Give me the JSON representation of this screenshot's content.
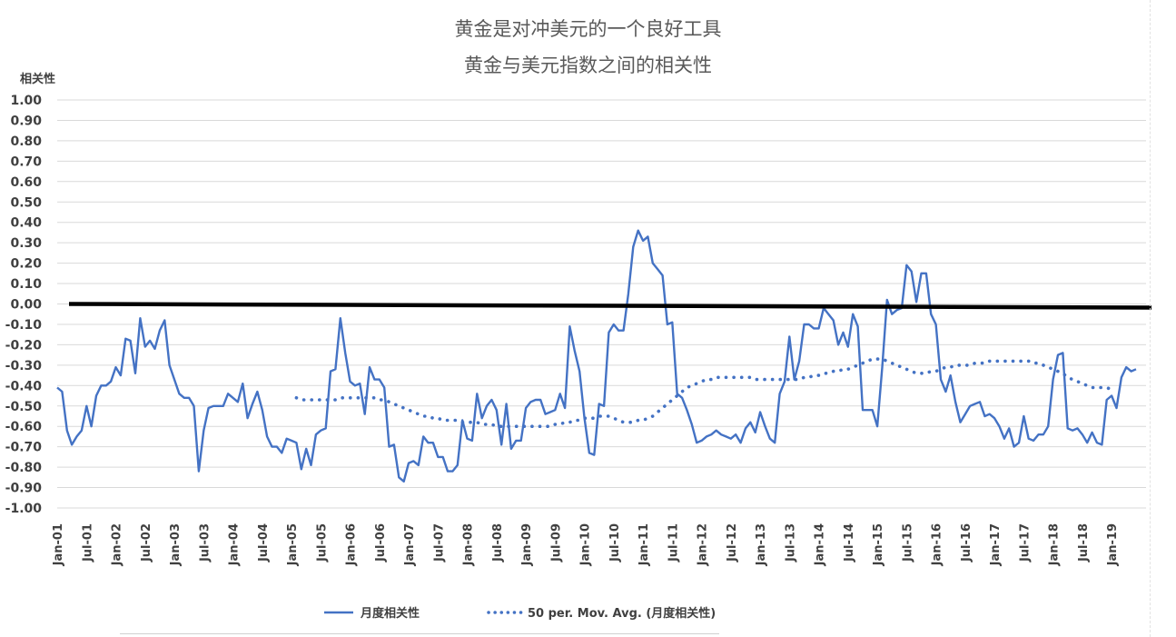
{
  "chart_data": {
    "type": "line",
    "title": "黄金是对冲美元的一个良好工具",
    "subtitle": "黄金与美元指数之间的相关性",
    "ylabel": "相关性",
    "xlabel": "",
    "ylim": [
      -1.0,
      1.0
    ],
    "y_ticks": [
      "1.00",
      "0.90",
      "0.80",
      "0.70",
      "0.60",
      "0.50",
      "0.40",
      "0.30",
      "0.20",
      "0.10",
      "0.00",
      "-0.10",
      "-0.20",
      "-0.30",
      "-0.40",
      "-0.50",
      "-0.60",
      "-0.70",
      "-0.80",
      "-0.90",
      "-1.00"
    ],
    "x_ticks": [
      "Jan-01",
      "Jul-01",
      "Jan-02",
      "Jul-02",
      "Jan-03",
      "Jul-03",
      "Jan-04",
      "Jul-04",
      "Jan-05",
      "Jul-05",
      "Jan-06",
      "Jul-06",
      "Jan-07",
      "Jul-07",
      "Jan-08",
      "Jul-08",
      "Jan-09",
      "Jul-09",
      "Jan-10",
      "Jul-10",
      "Jan-11",
      "Jul-11",
      "Jan-12",
      "Jul-12",
      "Jan-13",
      "Jul-13",
      "Jan-14",
      "Jul-14",
      "Jan-15",
      "Jul-15",
      "Jan-16",
      "Jul-16",
      "Jan-17",
      "Jul-17",
      "Jan-18",
      "Jul-18",
      "Jan-19"
    ],
    "x_start": "Jan-01",
    "x_end": "Jun-19",
    "grid": true,
    "legend_position": "bottom",
    "reference_line": {
      "y": 0.0,
      "color": "#000000"
    },
    "colors": {
      "series": "#4472c4",
      "reference": "#000000",
      "grid": "#d9d9d9",
      "text": "#595959"
    },
    "series": [
      {
        "name": "月度相关性",
        "style": "solid",
        "values": [
          -0.41,
          -0.43,
          -0.62,
          -0.69,
          -0.65,
          -0.62,
          -0.5,
          -0.6,
          -0.45,
          -0.4,
          -0.4,
          -0.38,
          -0.31,
          -0.35,
          -0.17,
          -0.18,
          -0.34,
          -0.07,
          -0.21,
          -0.18,
          -0.22,
          -0.13,
          -0.08,
          -0.3,
          -0.37,
          -0.44,
          -0.46,
          -0.46,
          -0.5,
          -0.82,
          -0.62,
          -0.51,
          -0.5,
          -0.5,
          -0.5,
          -0.44,
          -0.46,
          -0.48,
          -0.39,
          -0.56,
          -0.49,
          -0.43,
          -0.52,
          -0.65,
          -0.7,
          -0.7,
          -0.73,
          -0.66,
          -0.67,
          -0.68,
          -0.81,
          -0.71,
          -0.79,
          -0.64,
          -0.62,
          -0.61,
          -0.33,
          -0.32,
          -0.07,
          -0.24,
          -0.38,
          -0.4,
          -0.39,
          -0.54,
          -0.31,
          -0.37,
          -0.37,
          -0.41,
          -0.7,
          -0.69,
          -0.85,
          -0.87,
          -0.78,
          -0.77,
          -0.79,
          -0.65,
          -0.68,
          -0.68,
          -0.75,
          -0.75,
          -0.82,
          -0.82,
          -0.79,
          -0.57,
          -0.66,
          -0.67,
          -0.44,
          -0.56,
          -0.5,
          -0.47,
          -0.52,
          -0.69,
          -0.49,
          -0.71,
          -0.67,
          -0.67,
          -0.51,
          -0.48,
          -0.47,
          -0.47,
          -0.54,
          -0.53,
          -0.52,
          -0.44,
          -0.51,
          -0.11,
          -0.23,
          -0.33,
          -0.56,
          -0.73,
          -0.74,
          -0.49,
          -0.5,
          -0.14,
          -0.1,
          -0.13,
          -0.13,
          0.05,
          0.28,
          0.36,
          0.31,
          0.33,
          0.2,
          0.17,
          0.14,
          -0.1,
          -0.09,
          -0.44,
          -0.46,
          -0.52,
          -0.59,
          -0.68,
          -0.67,
          -0.65,
          -0.64,
          -0.62,
          -0.64,
          -0.65,
          -0.66,
          -0.64,
          -0.68,
          -0.61,
          -0.58,
          -0.63,
          -0.53,
          -0.6,
          -0.66,
          -0.68,
          -0.44,
          -0.38,
          -0.16,
          -0.37,
          -0.28,
          -0.1,
          -0.1,
          -0.12,
          -0.12,
          -0.02,
          -0.05,
          -0.08,
          -0.2,
          -0.14,
          -0.21,
          -0.05,
          -0.11,
          -0.52,
          -0.52,
          -0.52,
          -0.6,
          -0.31,
          0.02,
          -0.05,
          -0.03,
          -0.02,
          0.19,
          0.16,
          0.01,
          0.15,
          0.15,
          -0.05,
          -0.1,
          -0.37,
          -0.43,
          -0.35,
          -0.48,
          -0.58,
          -0.54,
          -0.5,
          -0.49,
          -0.48,
          -0.55,
          -0.54,
          -0.56,
          -0.6,
          -0.66,
          -0.61,
          -0.7,
          -0.68,
          -0.55,
          -0.66,
          -0.67,
          -0.64,
          -0.64,
          -0.6,
          -0.37,
          -0.25,
          -0.24,
          -0.61,
          -0.62,
          -0.61,
          -0.64,
          -0.68,
          -0.63,
          -0.68,
          -0.69,
          -0.47,
          -0.45,
          -0.51,
          -0.36,
          -0.31,
          -0.33,
          -0.32
        ]
      },
      {
        "name": "50 per. Mov. Avg. (月度相关性)",
        "style": "dotted",
        "start_index": 49,
        "values": [
          -0.46,
          -0.47,
          -0.47,
          -0.47,
          -0.47,
          -0.47,
          -0.47,
          -0.47,
          -0.47,
          -0.46,
          -0.46,
          -0.46,
          -0.46,
          -0.46,
          -0.46,
          -0.46,
          -0.46,
          -0.47,
          -0.47,
          -0.48,
          -0.49,
          -0.5,
          -0.51,
          -0.52,
          -0.53,
          -0.54,
          -0.55,
          -0.55,
          -0.56,
          -0.56,
          -0.57,
          -0.57,
          -0.57,
          -0.57,
          -0.58,
          -0.58,
          -0.58,
          -0.58,
          -0.59,
          -0.59,
          -0.59,
          -0.6,
          -0.6,
          -0.6,
          -0.6,
          -0.6,
          -0.6,
          -0.6,
          -0.6,
          -0.6,
          -0.6,
          -0.6,
          -0.6,
          -0.59,
          -0.59,
          -0.58,
          -0.58,
          -0.57,
          -0.57,
          -0.56,
          -0.56,
          -0.56,
          -0.55,
          -0.55,
          -0.55,
          -0.56,
          -0.57,
          -0.58,
          -0.58,
          -0.58,
          -0.57,
          -0.57,
          -0.56,
          -0.55,
          -0.53,
          -0.51,
          -0.49,
          -0.47,
          -0.45,
          -0.43,
          -0.41,
          -0.4,
          -0.39,
          -0.38,
          -0.37,
          -0.37,
          -0.36,
          -0.36,
          -0.36,
          -0.36,
          -0.36,
          -0.36,
          -0.36,
          -0.36,
          -0.37,
          -0.37,
          -0.37,
          -0.37,
          -0.37,
          -0.37,
          -0.37,
          -0.37,
          -0.37,
          -0.37,
          -0.36,
          -0.36,
          -0.35,
          -0.35,
          -0.34,
          -0.34,
          -0.33,
          -0.33,
          -0.32,
          -0.32,
          -0.31,
          -0.3,
          -0.29,
          -0.28,
          -0.27,
          -0.27,
          -0.27,
          -0.28,
          -0.29,
          -0.3,
          -0.31,
          -0.32,
          -0.33,
          -0.34,
          -0.34,
          -0.34,
          -0.33,
          -0.33,
          -0.32,
          -0.31,
          -0.31,
          -0.3,
          -0.3,
          -0.3,
          -0.3,
          -0.29,
          -0.29,
          -0.29,
          -0.28,
          -0.28,
          -0.28,
          -0.28,
          -0.28,
          -0.28,
          -0.28,
          -0.28,
          -0.28,
          -0.29,
          -0.29,
          -0.3,
          -0.31,
          -0.32,
          -0.33,
          -0.34,
          -0.36,
          -0.37,
          -0.38,
          -0.39,
          -0.4,
          -0.41,
          -0.41,
          -0.41,
          -0.41,
          -0.42
        ]
      }
    ]
  }
}
